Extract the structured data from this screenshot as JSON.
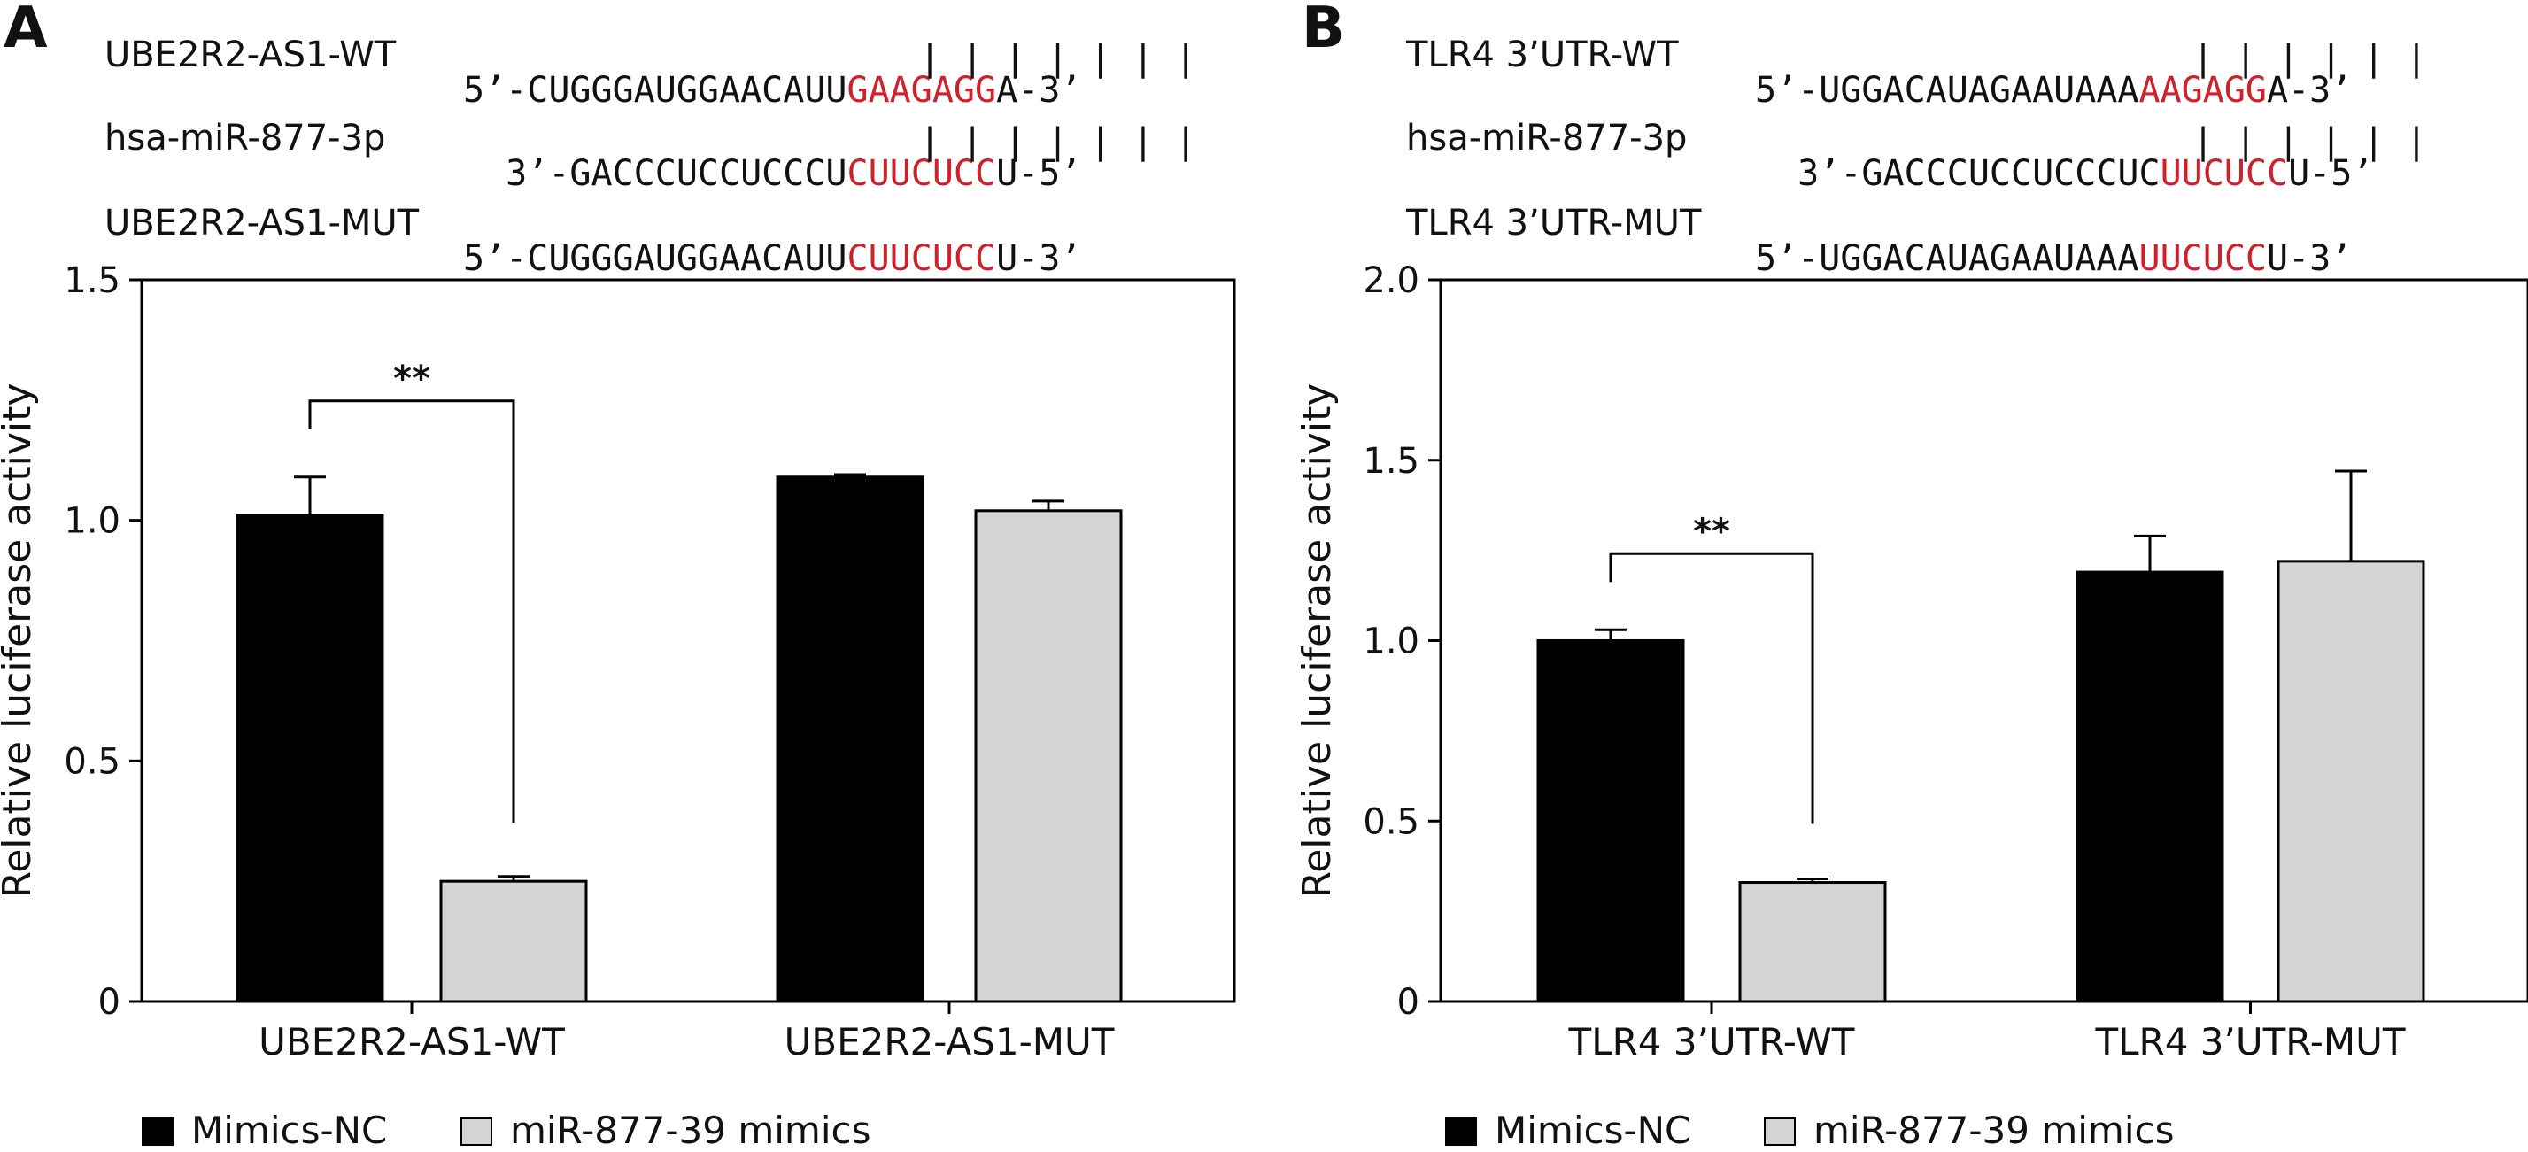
{
  "panels": [
    {
      "letter": "A",
      "sequences": [
        {
          "label": "UBE2R2-AS1-WT",
          "pre": "5’-CUGGGAUGGAACAUU",
          "site": "GAAGAGG",
          "post": "A-3’"
        },
        {
          "label": "hsa-miR-877-3p",
          "pre": "  3’-GACCCUCCUCCCU",
          "site": "CUUCUCC",
          "post": "U-5’"
        },
        {
          "label": "UBE2R2-AS1-MUT",
          "pre": "5’-CUGGGAUGGAACAUU",
          "site": "CUUCUCC",
          "post": "U-3’"
        }
      ],
      "pair_marks": "| | | | | | |"
    },
    {
      "letter": "B",
      "sequences": [
        {
          "label": "TLR4 3’UTR-WT",
          "pre": "5’-UGGACAUAGAAUAAA",
          "site": "AAGAGG",
          "post": "A-3’"
        },
        {
          "label": "hsa-miR-877-3p",
          "pre": "  3’-GACCCUCCUCCCUC",
          "site": "UUCUCC",
          "post": "U-5’"
        },
        {
          "label": "TLR4 3’UTR-MUT",
          "pre": "5’-UGGACAUAGAAUAAA",
          "site": "UUCUCC",
          "post": "U-3’"
        }
      ],
      "pair_marks": "| | | | | |"
    }
  ],
  "legend": {
    "items": [
      "Mimics-NC",
      "miR-877-39 mimics"
    ]
  },
  "colors": {
    "series_1": "#000000",
    "series_2": "#d4d4d4",
    "highlight": "#d0202a"
  },
  "chart_data": [
    {
      "type": "bar",
      "categories": [
        "UBE2R2-AS1-WT",
        "UBE2R2-AS1-MUT"
      ],
      "series": [
        {
          "name": "Mimics-NC",
          "values": [
            1.01,
            1.09
          ],
          "errors": [
            0.08,
            0.005
          ]
        },
        {
          "name": "miR-877-39 mimics",
          "values": [
            0.25,
            1.02
          ],
          "errors": [
            0.01,
            0.02
          ]
        }
      ],
      "ylabel": "Relative luciferase activity",
      "ylim": [
        0,
        1.5
      ],
      "yticks": [
        0,
        0.5,
        1.0,
        1.5
      ],
      "ytick_labels": [
        "0",
        "0.5",
        "1.0",
        "1.5"
      ],
      "significance": [
        {
          "category": "UBE2R2-AS1-WT",
          "label": "**"
        }
      ],
      "grid": false,
      "legend_position": "bottom-left"
    },
    {
      "type": "bar",
      "categories": [
        "TLR4 3’UTR-WT",
        "TLR4 3’UTR-MUT"
      ],
      "series": [
        {
          "name": "Mimics-NC",
          "values": [
            1.0,
            1.19
          ],
          "errors": [
            0.03,
            0.1
          ]
        },
        {
          "name": "miR-877-39 mimics",
          "values": [
            0.33,
            1.22
          ],
          "errors": [
            0.01,
            0.25
          ]
        }
      ],
      "ylabel": "Relative luciferase activity",
      "ylim": [
        0,
        2.0
      ],
      "yticks": [
        0,
        0.5,
        1.0,
        1.5,
        2.0
      ],
      "ytick_labels": [
        "0",
        "0.5",
        "1.0",
        "1.5",
        "2.0"
      ],
      "significance": [
        {
          "category": "TLR4 3’UTR-WT",
          "label": "**"
        }
      ],
      "grid": false,
      "legend_position": "bottom-left"
    }
  ]
}
